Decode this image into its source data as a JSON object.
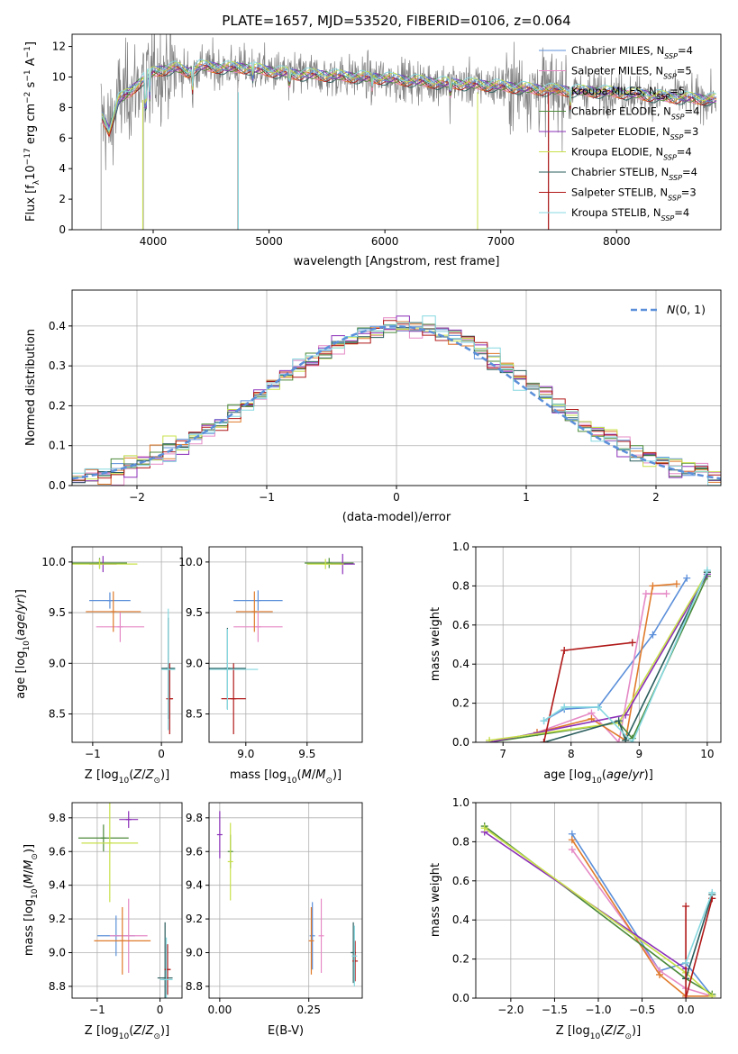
{
  "figure_title": "PLATE=1657, MJD=53520, FIBERID=0106, z=0.064",
  "colors": {
    "Chabrier MILES": "#5b8fd9",
    "Salpeter MILES": "#e58ac6",
    "Kroupa MILES": "#e07b2c",
    "Chabrier ELODIE": "#4b8a3a",
    "Salpeter ELODIE": "#8b2fb8",
    "Kroupa ELODIE": "#c8e04a",
    "Chabrier STELIB": "#2a5c5c",
    "Salpeter STELIB": "#b01818",
    "Kroupa STELIB": "#86d8e0",
    "data": "#7f7f7f",
    "gauss": "#5b8fd9"
  },
  "chart_data": [
    {
      "id": "spectrum",
      "type": "line",
      "title": "PLATE=1657, MJD=53520, FIBERID=0106, z=0.064",
      "xlabel": "wavelength [Angstrom, rest frame]",
      "ylabel": "Flux [f_λ 10^-17 erg cm^-2 s^-1 A^-1]",
      "xlim": [
        3300,
        8900
      ],
      "ylim": [
        0,
        12.8
      ],
      "xticks": [
        4000,
        5000,
        6000,
        7000,
        8000
      ],
      "yticks": [
        0,
        2,
        4,
        6,
        8,
        10,
        12
      ],
      "grid": false,
      "legend_position": "top-right",
      "legend": [
        {
          "name": "Chabrier MILES",
          "nssp": "4"
        },
        {
          "name": "Salpeter MILES",
          "nssp": "5"
        },
        {
          "name": "Kroupa MILES",
          "nssp": "5"
        },
        {
          "name": "Chabrier ELODIE",
          "nssp": "4"
        },
        {
          "name": "Salpeter ELODIE",
          "nssp": "3"
        },
        {
          "name": "Kroupa ELODIE",
          "nssp": "4"
        },
        {
          "name": "Chabrier STELIB",
          "nssp": "4"
        },
        {
          "name": "Salpeter STELIB",
          "nssp": "3"
        },
        {
          "name": "Kroupa STELIB",
          "nssp": "4"
        }
      ],
      "continuum": {
        "x": [
          3550,
          3620,
          3700,
          3800,
          3900,
          4000,
          4100,
          4200,
          4300,
          4400,
          4600,
          4800,
          5000,
          5200,
          5500,
          6000,
          6500,
          6800,
          7000,
          7300,
          7600,
          8000,
          8400,
          8900
        ],
        "y": [
          7.5,
          6.5,
          8.5,
          9.0,
          9.8,
          10.3,
          10.5,
          10.6,
          10.3,
          10.7,
          10.6,
          10.6,
          10.4,
          10.2,
          10.1,
          9.9,
          9.6,
          9.5,
          9.4,
          9.2,
          9.1,
          9.0,
          8.7,
          8.5
        ]
      }
    },
    {
      "id": "residuals",
      "type": "histogram",
      "xlabel": "(data-model)/error",
      "ylabel": "Normed distribution",
      "xlim": [
        -2.5,
        2.5
      ],
      "ylim": [
        0,
        0.49
      ],
      "xticks": [
        -2,
        -1,
        0,
        1,
        2
      ],
      "yticks": [
        0.0,
        0.1,
        0.2,
        0.3,
        0.4
      ],
      "grid": true,
      "legend_position": "top-right",
      "gauss_label": "N(0, 1)"
    },
    {
      "id": "age_vs_Z",
      "type": "scatter",
      "xlabel": "Z [log10(Z/Z⊙)]",
      "ylabel": "age [log10(age/yr)]",
      "xlim": [
        -1.3,
        0.3
      ],
      "ylim": [
        8.22,
        10.15
      ],
      "xticks": [
        -1,
        0
      ],
      "yticks": [
        8.5,
        9.0,
        9.5,
        10.0
      ],
      "grid": true,
      "points": [
        {
          "model": "Chabrier MILES",
          "x": -0.75,
          "y": 9.62,
          "xerr": 0.3,
          "yerr": 0.08
        },
        {
          "model": "Salpeter MILES",
          "x": -0.6,
          "y": 9.36,
          "xerr": 0.35,
          "yerr": 0.15
        },
        {
          "model": "Kroupa MILES",
          "x": -0.7,
          "y": 9.51,
          "xerr": 0.4,
          "yerr": 0.2
        },
        {
          "model": "Chabrier ELODIE",
          "x": -0.9,
          "y": 9.99,
          "xerr": 0.4,
          "yerr": 0.05
        },
        {
          "model": "Salpeter ELODIE",
          "x": -0.85,
          "y": 9.98,
          "xerr": 0.2,
          "yerr": 0.08
        },
        {
          "model": "Kroupa ELODIE",
          "x": -0.9,
          "y": 9.98,
          "xerr": 0.55,
          "yerr": 0.05
        },
        {
          "model": "Chabrier STELIB",
          "x": 0.1,
          "y": 8.95,
          "xerr": 0.1,
          "yerr": 0.5
        },
        {
          "model": "Salpeter STELIB",
          "x": 0.12,
          "y": 8.65,
          "xerr": 0.05,
          "yerr": 0.35
        },
        {
          "model": "Kroupa STELIB",
          "x": 0.1,
          "y": 8.94,
          "xerr": 0.1,
          "yerr": 0.6
        }
      ]
    },
    {
      "id": "age_vs_mass",
      "type": "scatter",
      "xlabel": "mass [log10(M/M⊙)]",
      "ylabel": "",
      "xlim": [
        8.7,
        9.95
      ],
      "ylim": [
        8.22,
        10.15
      ],
      "xticks": [
        9.0,
        9.5
      ],
      "yticks": [
        8.5,
        9.0,
        9.5,
        10.0
      ],
      "grid": true,
      "points": [
        {
          "model": "Chabrier MILES",
          "x": 9.1,
          "y": 9.62,
          "xerr": 0.2,
          "yerr": 0.1
        },
        {
          "model": "Salpeter MILES",
          "x": 9.1,
          "y": 9.36,
          "xerr": 0.2,
          "yerr": 0.15
        },
        {
          "model": "Kroupa MILES",
          "x": 9.07,
          "y": 9.51,
          "xerr": 0.15,
          "yerr": 0.2
        },
        {
          "model": "Chabrier ELODIE",
          "x": 9.68,
          "y": 9.99,
          "xerr": 0.2,
          "yerr": 0.05
        },
        {
          "model": "Salpeter ELODIE",
          "x": 9.79,
          "y": 9.98,
          "xerr": 0.1,
          "yerr": 0.1
        },
        {
          "model": "Kroupa ELODIE",
          "x": 9.65,
          "y": 9.98,
          "xerr": 0.15,
          "yerr": 0.05
        },
        {
          "model": "Chabrier STELIB",
          "x": 8.85,
          "y": 8.95,
          "xerr": 0.15,
          "yerr": 0.4
        },
        {
          "model": "Salpeter STELIB",
          "x": 8.9,
          "y": 8.65,
          "xerr": 0.1,
          "yerr": 0.35
        },
        {
          "model": "Kroupa STELIB",
          "x": 8.85,
          "y": 8.94,
          "xerr": 0.25,
          "yerr": 0.4
        }
      ]
    },
    {
      "id": "weight_vs_age",
      "type": "line",
      "xlabel": "age [log10(age/yr)]",
      "ylabel": "mass weight",
      "xlim": [
        6.6,
        10.2
      ],
      "ylim": [
        0,
        1.0
      ],
      "xticks": [
        7,
        8,
        9,
        10
      ],
      "yticks": [
        0.0,
        0.2,
        0.4,
        0.6,
        0.8,
        1.0
      ],
      "grid": true,
      "series": [
        {
          "model": "Chabrier MILES",
          "x": [
            7.6,
            7.9,
            8.4,
            9.2,
            9.7
          ],
          "y": [
            0.11,
            0.17,
            0.18,
            0.55,
            0.84
          ]
        },
        {
          "model": "Salpeter MILES",
          "x": [
            7.5,
            8.3,
            8.7,
            9.1,
            9.4
          ],
          "y": [
            0.05,
            0.15,
            0.0,
            0.76,
            0.76
          ]
        },
        {
          "model": "Kroupa MILES",
          "x": [
            7.5,
            8.3,
            8.8,
            9.2,
            9.55
          ],
          "y": [
            0.05,
            0.12,
            0.01,
            0.8,
            0.81
          ]
        },
        {
          "model": "Chabrier ELODIE",
          "x": [
            6.8,
            8.7,
            8.9,
            10.0
          ],
          "y": [
            0.0,
            0.1,
            0.02,
            0.85
          ]
        },
        {
          "model": "Salpeter ELODIE",
          "x": [
            6.8,
            8.8,
            10.0
          ],
          "y": [
            0.0,
            0.14,
            0.86
          ]
        },
        {
          "model": "Kroupa ELODIE",
          "x": [
            6.8,
            8.7,
            10.0
          ],
          "y": [
            0.01,
            0.1,
            0.87
          ]
        },
        {
          "model": "Chabrier STELIB",
          "x": [
            7.6,
            8.7,
            8.8,
            10.0
          ],
          "y": [
            0.0,
            0.11,
            0.01,
            0.87
          ]
        },
        {
          "model": "Salpeter STELIB",
          "x": [
            7.6,
            7.9,
            8.9
          ],
          "y": [
            0.0,
            0.47,
            0.51
          ]
        },
        {
          "model": "Kroupa STELIB",
          "x": [
            7.6,
            7.9,
            8.4,
            8.9,
            10.0
          ],
          "y": [
            0.11,
            0.18,
            0.18,
            0.0,
            0.88
          ]
        }
      ]
    },
    {
      "id": "mass_vs_Z",
      "type": "scatter",
      "xlabel": "Z [log10(Z/Z⊙)]",
      "ylabel": "mass [log10(M/M⊙)]",
      "xlim": [
        -1.4,
        0.35
      ],
      "ylim": [
        8.73,
        9.89
      ],
      "xticks": [
        -1,
        0
      ],
      "yticks": [
        8.8,
        9.0,
        9.2,
        9.4,
        9.6,
        9.8
      ],
      "grid": true,
      "points": [
        {
          "model": "Chabrier MILES",
          "x": -0.7,
          "y": 9.1,
          "xerr": 0.3,
          "yerr": 0.12
        },
        {
          "model": "Salpeter MILES",
          "x": -0.5,
          "y": 9.1,
          "xerr": 0.3,
          "yerr": 0.22
        },
        {
          "model": "Kroupa MILES",
          "x": -0.6,
          "y": 9.07,
          "xerr": 0.45,
          "yerr": 0.2
        },
        {
          "model": "Chabrier ELODIE",
          "x": -0.9,
          "y": 9.68,
          "xerr": 0.4,
          "yerr": 0.08
        },
        {
          "model": "Salpeter ELODIE",
          "x": -0.5,
          "y": 9.79,
          "xerr": 0.15,
          "yerr": 0.05
        },
        {
          "model": "Kroupa ELODIE",
          "x": -0.8,
          "y": 9.65,
          "xerr": 0.45,
          "yerr": 0.35
        },
        {
          "model": "Chabrier STELIB",
          "x": 0.08,
          "y": 8.85,
          "xerr": 0.12,
          "yerr": 0.33
        },
        {
          "model": "Salpeter STELIB",
          "x": 0.12,
          "y": 8.9,
          "xerr": 0.05,
          "yerr": 0.15
        },
        {
          "model": "Kroupa STELIB",
          "x": 0.1,
          "y": 8.84,
          "xerr": 0.1,
          "yerr": 0.25
        }
      ]
    },
    {
      "id": "mass_vs_EBV",
      "type": "scatter",
      "xlabel": "E(B-V)",
      "ylabel": "",
      "xlim": [
        -0.03,
        0.4
      ],
      "ylim": [
        8.73,
        9.89
      ],
      "xticks": [
        0.0,
        0.25
      ],
      "yticks": [
        8.8,
        9.0,
        9.2,
        9.4,
        9.6,
        9.8
      ],
      "grid": true,
      "points": [
        {
          "model": "Chabrier MILES",
          "x": 0.26,
          "y": 9.1,
          "yerr": 0.2
        },
        {
          "model": "Salpeter MILES",
          "x": 0.285,
          "y": 9.1,
          "yerr": 0.22
        },
        {
          "model": "Kroupa MILES",
          "x": 0.257,
          "y": 9.07,
          "yerr": 0.2
        },
        {
          "model": "Chabrier ELODIE",
          "x": 0.03,
          "y": 9.6,
          "yerr": 0.1
        },
        {
          "model": "Salpeter ELODIE",
          "x": 0.0,
          "y": 9.7,
          "yerr": 0.14
        },
        {
          "model": "Kroupa ELODIE",
          "x": 0.03,
          "y": 9.54,
          "yerr": 0.23
        },
        {
          "model": "Chabrier STELIB",
          "x": 0.375,
          "y": 9.0,
          "yerr": 0.18
        },
        {
          "model": "Salpeter STELIB",
          "x": 0.38,
          "y": 8.95,
          "yerr": 0.12
        },
        {
          "model": "Kroupa STELIB",
          "x": 0.378,
          "y": 8.98,
          "yerr": 0.18
        }
      ]
    },
    {
      "id": "weight_vs_Z",
      "type": "line",
      "xlabel": "Z [log10(Z/Z⊙)]",
      "ylabel": "mass weight",
      "xlim": [
        -2.4,
        0.4
      ],
      "ylim": [
        0,
        1.0
      ],
      "xticks": [
        -2.0,
        -1.5,
        -1.0,
        -0.5,
        0.0
      ],
      "yticks": [
        0.0,
        0.2,
        0.4,
        0.6,
        0.8,
        1.0
      ],
      "grid": true,
      "series": [
        {
          "model": "Chabrier MILES",
          "x": [
            -1.3,
            -0.3,
            0.0,
            0.3
          ],
          "y": [
            0.84,
            0.14,
            0.18,
            0.01
          ]
        },
        {
          "model": "Salpeter MILES",
          "x": [
            -1.3,
            -0.3,
            0.0,
            0.3
          ],
          "y": [
            0.76,
            0.14,
            0.05,
            0.01
          ]
        },
        {
          "model": "Kroupa MILES",
          "x": [
            -1.3,
            -0.3,
            0.0,
            0.3
          ],
          "y": [
            0.81,
            0.12,
            0.01,
            0.01
          ]
        },
        {
          "model": "Chabrier ELODIE",
          "x": [
            -2.3,
            0.0,
            0.3
          ],
          "y": [
            0.88,
            0.1,
            0.02
          ]
        },
        {
          "model": "Salpeter ELODIE",
          "x": [
            -2.3,
            0.0
          ],
          "y": [
            0.85,
            0.15
          ]
        },
        {
          "model": "Kroupa ELODIE",
          "x": [
            -2.3,
            0.0,
            0.3
          ],
          "y": [
            0.87,
            0.13,
            0.01
          ]
        },
        {
          "model": "Chabrier STELIB",
          "x": [
            0.0,
            0.3
          ],
          "y": [
            0.1,
            0.53
          ]
        },
        {
          "model": "Salpeter STELIB",
          "x": [
            0.0,
            0.0,
            0.3
          ],
          "y": [
            0.47,
            0.0,
            0.51
          ]
        },
        {
          "model": "Kroupa STELIB",
          "x": [
            0.0,
            0.3
          ],
          "y": [
            0.18,
            0.54
          ]
        }
      ]
    }
  ]
}
